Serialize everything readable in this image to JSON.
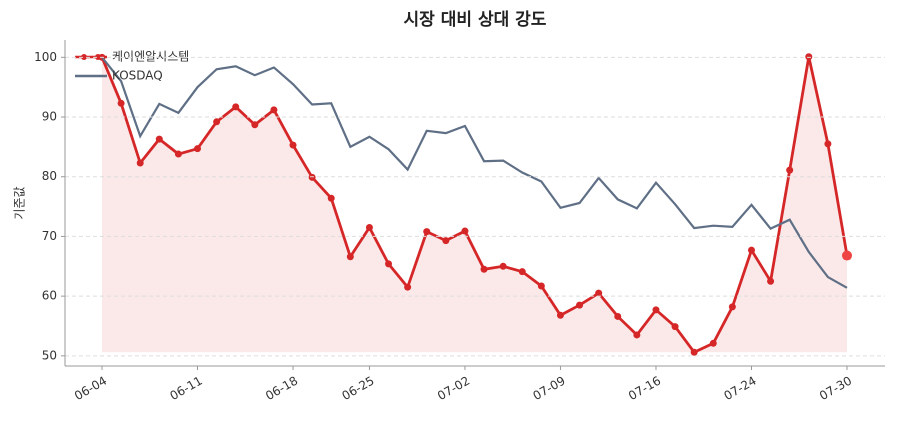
{
  "chart_data": {
    "type": "line",
    "title": "시장 대비 상대 강도",
    "y_label": "기준값",
    "categories": [
      "06-04",
      null,
      null,
      null,
      null,
      "06-11",
      null,
      null,
      null,
      null,
      "06-18",
      null,
      null,
      null,
      "06-25",
      null,
      null,
      null,
      null,
      "07-02",
      null,
      null,
      null,
      null,
      "07-09",
      null,
      null,
      null,
      null,
      "07-16",
      null,
      null,
      null,
      null,
      "07-24",
      null,
      null,
      null,
      null,
      "07-30"
    ],
    "series": [
      {
        "name": "케이엔알시스템",
        "color": "#d62728",
        "fill": true,
        "values": [
          100,
          92.3,
          82.3,
          86.3,
          83.8,
          84.7,
          89.2,
          91.7,
          88.7,
          91.2,
          85.3,
          79.9,
          76.4,
          66.6,
          71.5,
          65.4,
          61.5,
          70.8,
          69.3,
          70.9,
          64.5,
          65.0,
          64.1,
          61.7,
          56.8,
          58.5,
          60.5,
          56.6,
          53.5,
          57.7,
          54.9,
          50.6,
          52.1,
          58.2,
          67.7,
          62.5,
          81.1,
          100.1,
          85.5,
          66.8
        ]
      },
      {
        "name": "KOSDAQ",
        "color": "#5f6f86",
        "values": [
          100,
          96,
          86.8,
          92.2,
          90.7,
          95,
          98,
          98.5,
          97,
          98.3,
          95.5,
          92.1,
          92.3,
          85,
          86.7,
          84.6,
          81.2,
          87.7,
          87.3,
          88.5,
          82.6,
          82.7,
          80.7,
          79.2,
          74.8,
          75.6,
          79.8,
          76.2,
          74.7,
          79,
          75.4,
          71.4,
          71.8,
          71.6,
          75.3,
          71.3,
          72.8,
          67.4,
          63.2,
          61.4
        ]
      }
    ],
    "ylim": [
      48.3,
      102.9
    ],
    "yticks": [
      50,
      60,
      70,
      80,
      90,
      100
    ],
    "grid": true,
    "legend": "upper-left"
  }
}
